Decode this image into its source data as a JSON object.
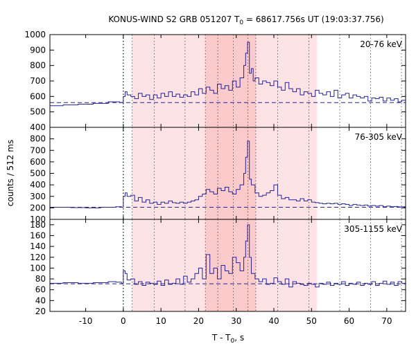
{
  "chart_data": {
    "type": "line",
    "title_parts": [
      "KONUS-WIND S2 GRB 051207 T",
      "0",
      " = 68617.756s UT (19:03:37.756)"
    ],
    "xlabel_parts": [
      "T - T",
      "0",
      ", s"
    ],
    "ylabel": "counts / 512 ms",
    "xlim": [
      -19.5,
      75
    ],
    "x_ticks": [
      -10,
      0,
      10,
      20,
      30,
      40,
      50,
      60,
      70
    ],
    "x_tick_labels": [
      "-10",
      "0",
      "10",
      "20",
      "30",
      "40",
      "50",
      "60",
      "70"
    ],
    "shaded_intervals": [
      {
        "x0": 2.3,
        "x1": 51.4,
        "color": "#fde3e3"
      },
      {
        "x0": 21.8,
        "x1": 35.2,
        "color": "#fbcaca"
      }
    ],
    "dotted_lines": [
      0,
      2.3,
      8.2,
      16.4,
      21.8,
      25.1,
      29.2,
      33.1,
      35.2,
      41.0,
      49.3,
      57.5,
      65.7,
      73.9
    ],
    "line_color": "#2020a0",
    "panels": [
      {
        "band": "20-76 keV",
        "ylim": [
          400,
          1000
        ],
        "y_ticks": [
          400,
          500,
          600,
          700,
          800,
          900,
          1000
        ],
        "y_tick_labels": [
          "400",
          "500",
          "600",
          "700",
          "800",
          "900",
          "1000"
        ],
        "background": 560,
        "curve": [
          [
            -19.5,
            540
          ],
          [
            -16,
            545
          ],
          [
            -12,
            550
          ],
          [
            -8,
            555
          ],
          [
            -4,
            565
          ],
          [
            -1,
            560
          ],
          [
            0,
            600
          ],
          [
            0.5,
            630
          ],
          [
            1,
            610
          ],
          [
            2,
            600
          ],
          [
            3,
            585
          ],
          [
            4,
            620
          ],
          [
            5,
            600
          ],
          [
            6,
            610
          ],
          [
            7,
            580
          ],
          [
            8,
            610
          ],
          [
            9,
            590
          ],
          [
            10,
            620
          ],
          [
            11,
            600
          ],
          [
            12,
            630
          ],
          [
            13,
            600
          ],
          [
            14,
            615
          ],
          [
            15,
            595
          ],
          [
            16,
            610
          ],
          [
            17,
            600
          ],
          [
            18,
            630
          ],
          [
            19,
            610
          ],
          [
            20,
            650
          ],
          [
            21,
            620
          ],
          [
            22,
            660
          ],
          [
            23,
            640
          ],
          [
            24,
            620
          ],
          [
            25,
            680
          ],
          [
            26,
            650
          ],
          [
            27,
            670
          ],
          [
            28,
            640
          ],
          [
            29,
            700
          ],
          [
            30,
            660
          ],
          [
            31,
            720
          ],
          [
            32,
            800
          ],
          [
            32.5,
            880
          ],
          [
            33,
            950
          ],
          [
            33.5,
            750
          ],
          [
            34,
            780
          ],
          [
            34.5,
            700
          ],
          [
            35,
            720
          ],
          [
            36,
            680
          ],
          [
            37,
            700
          ],
          [
            38,
            690
          ],
          [
            39,
            670
          ],
          [
            40,
            700
          ],
          [
            41,
            660
          ],
          [
            42,
            640
          ],
          [
            43,
            690
          ],
          [
            44,
            650
          ],
          [
            45,
            630
          ],
          [
            46,
            650
          ],
          [
            47,
            610
          ],
          [
            48,
            630
          ],
          [
            49,
            620
          ],
          [
            50,
            600
          ],
          [
            51,
            640
          ],
          [
            52,
            620
          ],
          [
            53,
            610
          ],
          [
            54,
            630
          ],
          [
            55,
            600
          ],
          [
            56,
            640
          ],
          [
            57,
            590
          ],
          [
            58,
            610
          ],
          [
            59,
            620
          ],
          [
            60,
            590
          ],
          [
            61,
            610
          ],
          [
            62,
            600
          ],
          [
            63,
            590
          ],
          [
            64,
            600
          ],
          [
            65,
            570
          ],
          [
            66,
            590
          ],
          [
            67,
            585
          ],
          [
            68,
            595
          ],
          [
            69,
            570
          ],
          [
            70,
            590
          ],
          [
            71,
            575
          ],
          [
            72,
            585
          ],
          [
            73,
            565
          ],
          [
            74,
            575
          ],
          [
            75,
            570
          ]
        ]
      },
      {
        "band": "76-305 keV",
        "ylim": [
          100,
          900
        ],
        "y_ticks": [
          100,
          200,
          300,
          400,
          500,
          600,
          700,
          800
        ],
        "y_tick_labels": [
          "100",
          "200",
          "300",
          "400",
          "500",
          "600",
          "700",
          "800"
        ],
        "background": 205,
        "curve": [
          [
            -19.5,
            205
          ],
          [
            -14,
            202
          ],
          [
            -10,
            200
          ],
          [
            -6,
            205
          ],
          [
            -2,
            210
          ],
          [
            -0.5,
            205
          ],
          [
            0,
            300
          ],
          [
            0.5,
            330
          ],
          [
            1,
            300
          ],
          [
            2,
            310
          ],
          [
            3,
            260
          ],
          [
            4,
            290
          ],
          [
            5,
            250
          ],
          [
            6,
            270
          ],
          [
            7,
            240
          ],
          [
            8,
            250
          ],
          [
            9,
            230
          ],
          [
            10,
            250
          ],
          [
            11,
            240
          ],
          [
            12,
            260
          ],
          [
            13,
            245
          ],
          [
            14,
            240
          ],
          [
            15,
            250
          ],
          [
            16,
            240
          ],
          [
            17,
            250
          ],
          [
            18,
            260
          ],
          [
            19,
            270
          ],
          [
            20,
            300
          ],
          [
            21,
            320
          ],
          [
            22,
            360
          ],
          [
            23,
            340
          ],
          [
            24,
            320
          ],
          [
            25,
            370
          ],
          [
            26,
            350
          ],
          [
            27,
            380
          ],
          [
            28,
            340
          ],
          [
            29,
            320
          ],
          [
            30,
            360
          ],
          [
            31,
            400
          ],
          [
            32,
            500
          ],
          [
            32.5,
            640
          ],
          [
            33,
            780
          ],
          [
            33.5,
            450
          ],
          [
            34,
            400
          ],
          [
            35,
            330
          ],
          [
            36,
            300
          ],
          [
            37,
            310
          ],
          [
            38,
            330
          ],
          [
            39,
            350
          ],
          [
            40,
            400
          ],
          [
            41,
            310
          ],
          [
            42,
            280
          ],
          [
            43,
            290
          ],
          [
            44,
            270
          ],
          [
            45,
            270
          ],
          [
            46,
            260
          ],
          [
            47,
            280
          ],
          [
            48,
            260
          ],
          [
            49,
            270
          ],
          [
            50,
            250
          ],
          [
            51,
            245
          ],
          [
            52,
            240
          ],
          [
            53,
            235
          ],
          [
            54,
            240
          ],
          [
            55,
            235
          ],
          [
            56,
            240
          ],
          [
            57,
            230
          ],
          [
            58,
            235
          ],
          [
            59,
            230
          ],
          [
            60,
            220
          ],
          [
            61,
            230
          ],
          [
            62,
            225
          ],
          [
            63,
            220
          ],
          [
            64,
            225
          ],
          [
            65,
            215
          ],
          [
            66,
            220
          ],
          [
            67,
            215
          ],
          [
            68,
            220
          ],
          [
            69,
            210
          ],
          [
            70,
            215
          ],
          [
            71,
            210
          ],
          [
            72,
            212
          ],
          [
            73,
            208
          ],
          [
            74,
            210
          ],
          [
            75,
            205
          ]
        ]
      },
      {
        "band": "305-1155 keV",
        "ylim": [
          20,
          190
        ],
        "y_ticks": [
          20,
          40,
          60,
          80,
          100,
          120,
          140,
          160,
          180
        ],
        "y_tick_labels": [
          "20",
          "40",
          "60",
          "80",
          "100",
          "120",
          "140",
          "160",
          "180"
        ],
        "background": 71,
        "curve": [
          [
            -19.5,
            72
          ],
          [
            -16,
            73
          ],
          [
            -12,
            72
          ],
          [
            -8,
            73
          ],
          [
            -4,
            75
          ],
          [
            -2,
            74
          ],
          [
            -0.5,
            72
          ],
          [
            0,
            95
          ],
          [
            0.5,
            90
          ],
          [
            1,
            78
          ],
          [
            2,
            80
          ],
          [
            3,
            70
          ],
          [
            4,
            75
          ],
          [
            5,
            68
          ],
          [
            6,
            74
          ],
          [
            7,
            72
          ],
          [
            8,
            70
          ],
          [
            9,
            76
          ],
          [
            10,
            68
          ],
          [
            11,
            78
          ],
          [
            12,
            70
          ],
          [
            13,
            72
          ],
          [
            14,
            80
          ],
          [
            15,
            70
          ],
          [
            16,
            85
          ],
          [
            17,
            74
          ],
          [
            18,
            80
          ],
          [
            19,
            90
          ],
          [
            20,
            100
          ],
          [
            21,
            80
          ],
          [
            22,
            125
          ],
          [
            23,
            90
          ],
          [
            24,
            100
          ],
          [
            25,
            80
          ],
          [
            26,
            105
          ],
          [
            27,
            95
          ],
          [
            28,
            90
          ],
          [
            29,
            120
          ],
          [
            30,
            110
          ],
          [
            31,
            95
          ],
          [
            32,
            120
          ],
          [
            32.5,
            150
          ],
          [
            33,
            180
          ],
          [
            33.5,
            120
          ],
          [
            34,
            90
          ],
          [
            35,
            80
          ],
          [
            36,
            75
          ],
          [
            37,
            80
          ],
          [
            38,
            70
          ],
          [
            39,
            72
          ],
          [
            40,
            82
          ],
          [
            41,
            75
          ],
          [
            42,
            70
          ],
          [
            43,
            80
          ],
          [
            44,
            65
          ],
          [
            45,
            75
          ],
          [
            46,
            72
          ],
          [
            47,
            70
          ],
          [
            48,
            68
          ],
          [
            49,
            72
          ],
          [
            50,
            70
          ],
          [
            51,
            65
          ],
          [
            52,
            72
          ],
          [
            53,
            70
          ],
          [
            54,
            74
          ],
          [
            55,
            68
          ],
          [
            56,
            72
          ],
          [
            57,
            70
          ],
          [
            58,
            75
          ],
          [
            59,
            68
          ],
          [
            60,
            72
          ],
          [
            61,
            70
          ],
          [
            62,
            74
          ],
          [
            63,
            68
          ],
          [
            64,
            72
          ],
          [
            65,
            70
          ],
          [
            66,
            75
          ],
          [
            67,
            68
          ],
          [
            68,
            72
          ],
          [
            69,
            76
          ],
          [
            70,
            70
          ],
          [
            71,
            74
          ],
          [
            72,
            68
          ],
          [
            73,
            75
          ],
          [
            74,
            72
          ],
          [
            75,
            74
          ]
        ]
      }
    ]
  }
}
